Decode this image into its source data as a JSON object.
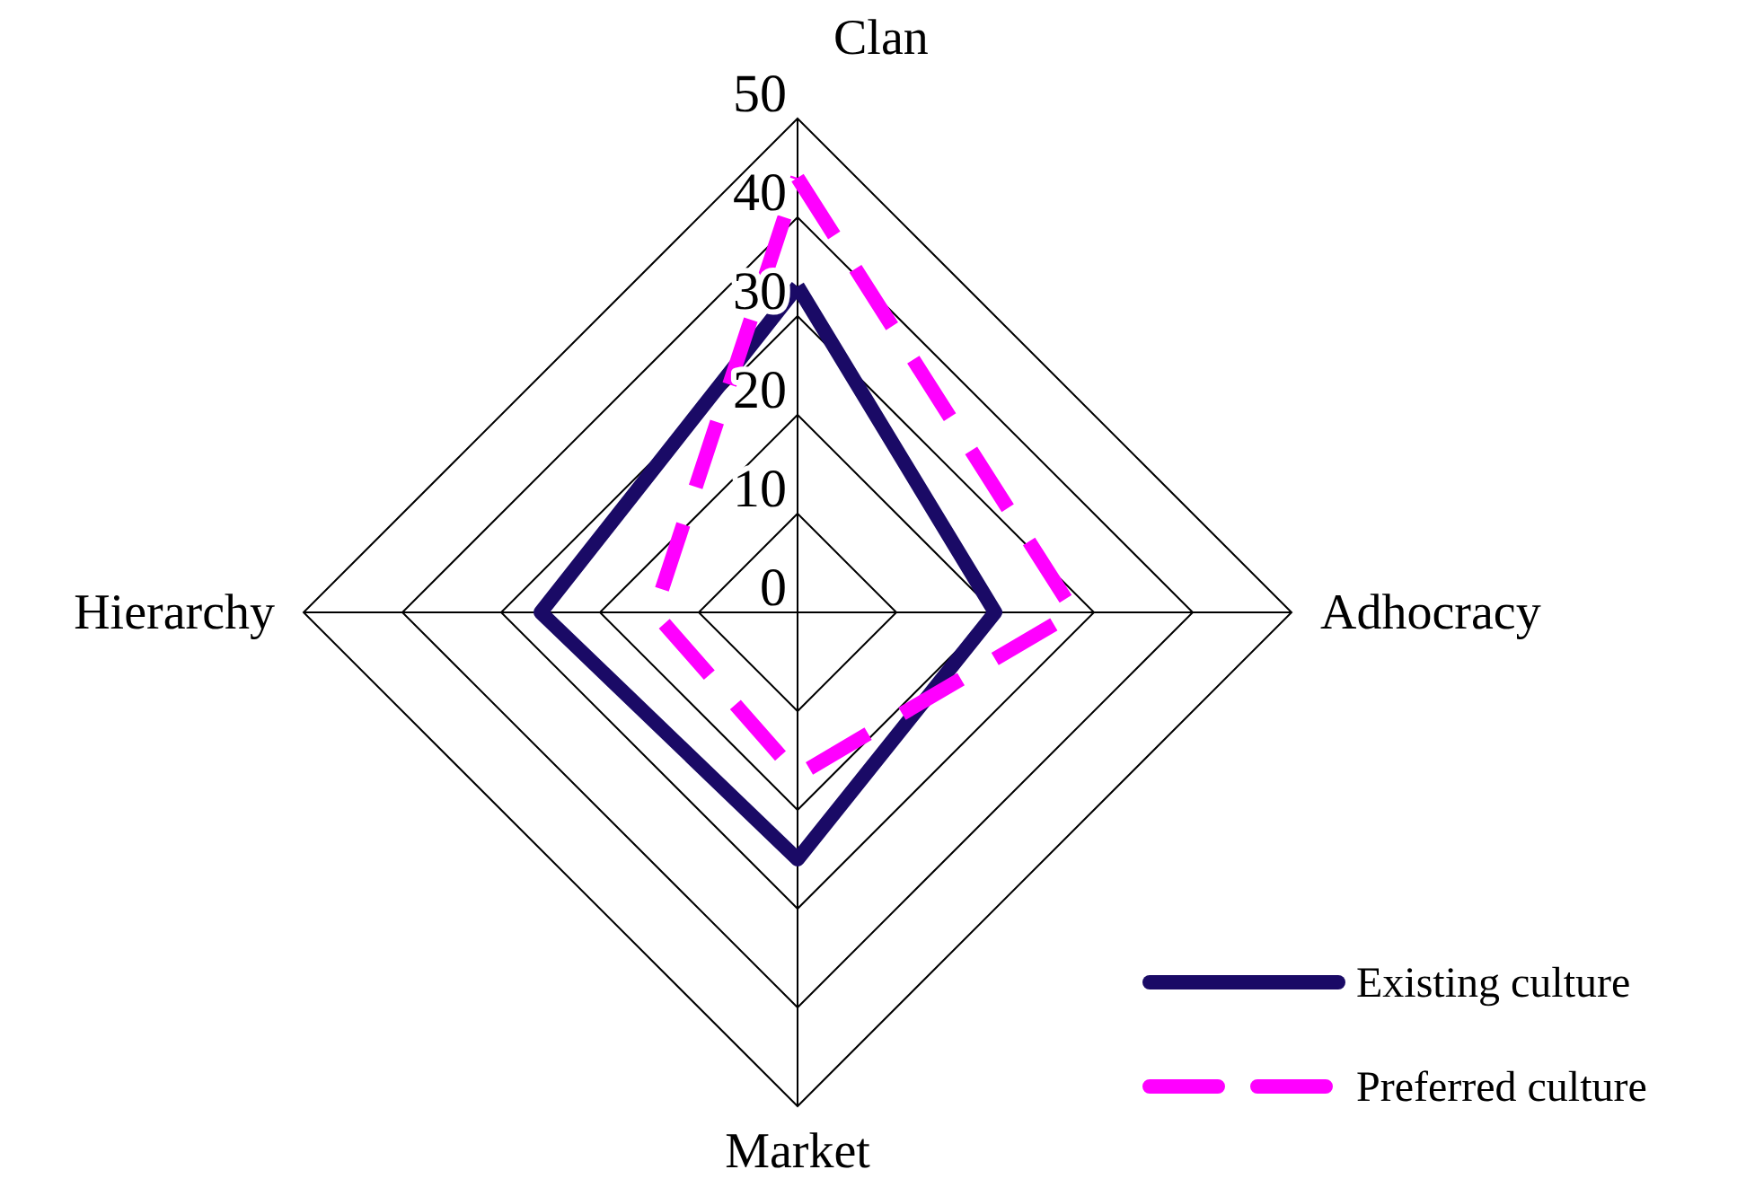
{
  "chart_data": {
    "type": "radar",
    "categories": [
      "Clan",
      "Adhocracy",
      "Market",
      "Hierarchy"
    ],
    "series": [
      {
        "name": "Existing culture",
        "color": "#1a0a66",
        "values": [
          33,
          20,
          25,
          26
        ],
        "line_style": "solid"
      },
      {
        "name": "Preferred culture",
        "color": "#ff00ff",
        "values": [
          44,
          28,
          16.5,
          14.5
        ],
        "line_style": "dashed"
      }
    ],
    "ylim": [
      0,
      50
    ],
    "yticks": [
      0,
      10,
      20,
      30,
      40,
      50
    ],
    "grid": true,
    "legend": "bottom right",
    "marker": "none"
  }
}
